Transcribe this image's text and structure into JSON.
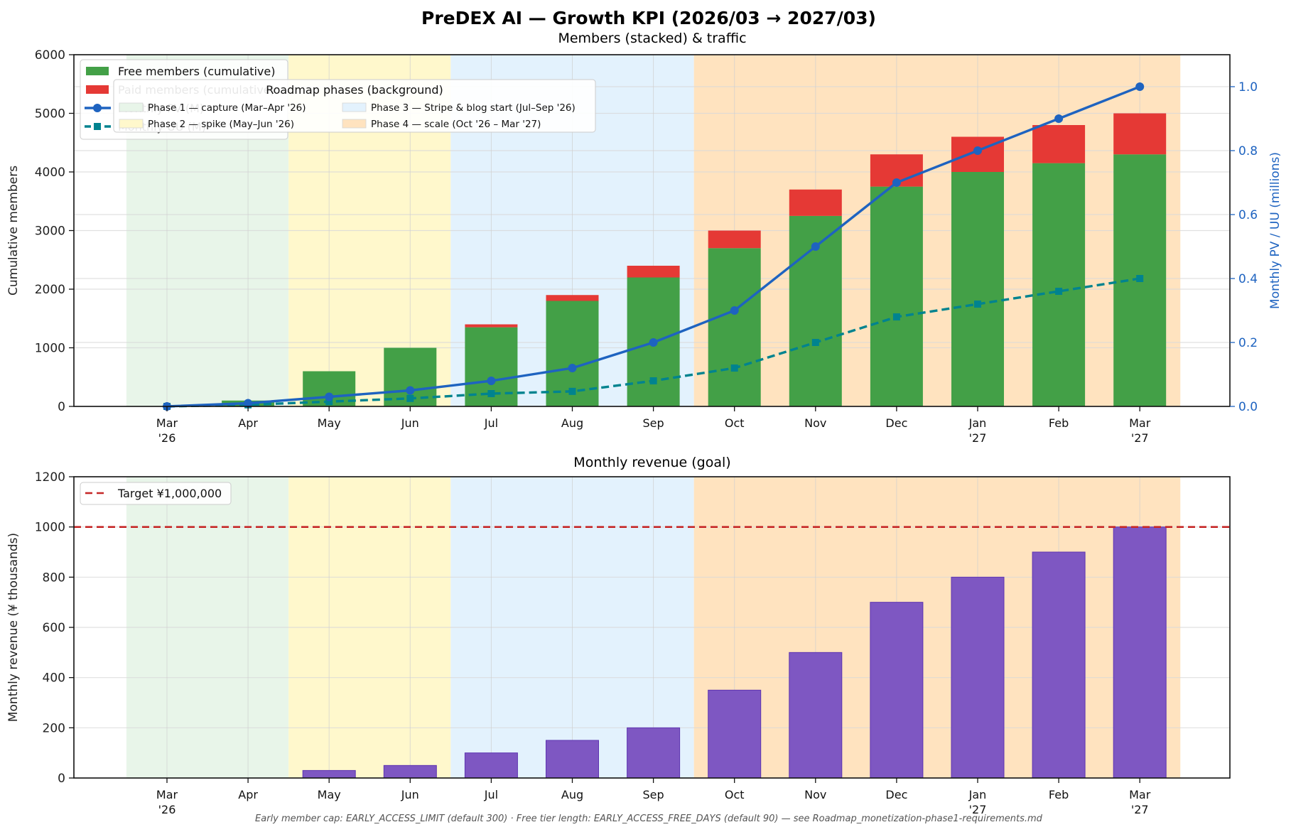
{
  "figure": {
    "title": "PreDEX AI — Growth KPI (2026/03 → 2027/03)",
    "footnote": "Early member cap: EARLY_ACCESS_LIMIT (default 300) · Free tier length: EARLY_ACCESS_FREE_DAYS (default 90) — see Roadmap_monetization-phase1-requirements.md"
  },
  "phases": {
    "title": "Roadmap phases (background)",
    "items": [
      {
        "label": "Phase 1 — capture (Mar–Apr '26)",
        "start_index": 0,
        "end_index": 1,
        "color": "#e8f5e9"
      },
      {
        "label": "Phase 2 — spike (May–Jun '26)",
        "start_index": 2,
        "end_index": 3,
        "color": "#fff8cc"
      },
      {
        "label": "Phase 3 — Stripe & blog start (Jul–Sep '26)",
        "start_index": 4,
        "end_index": 6,
        "color": "#e3f2fd"
      },
      {
        "label": "Phase 4 — scale (Oct '26 – Mar '27)",
        "start_index": 7,
        "end_index": 12,
        "color": "#ffe3bf"
      }
    ]
  },
  "chart_data": [
    {
      "type": "bar",
      "subtype": "stacked-bar-with-lines",
      "title": "Members (stacked) & traffic",
      "xlabel": "",
      "ylabel": "Cumulative members",
      "ylabel_right": "Monthly PV / UU (millions)",
      "categories": [
        [
          "Mar",
          "'26"
        ],
        [
          "Apr",
          ""
        ],
        [
          "May",
          ""
        ],
        [
          "Jun",
          ""
        ],
        [
          "Jul",
          ""
        ],
        [
          "Aug",
          ""
        ],
        [
          "Sep",
          ""
        ],
        [
          "Oct",
          ""
        ],
        [
          "Nov",
          ""
        ],
        [
          "Dec",
          ""
        ],
        [
          "Jan",
          "'27"
        ],
        [
          "Feb",
          ""
        ],
        [
          "Mar",
          "'27"
        ]
      ],
      "ylim": [
        0,
        6000
      ],
      "yticks": [
        0,
        1000,
        2000,
        3000,
        4000,
        5000,
        6000
      ],
      "ylim_right": [
        0,
        1.1
      ],
      "yticks_right": [
        "0.0",
        "0.2",
        "0.4",
        "0.6",
        "0.8",
        "1.0"
      ],
      "grid": true,
      "legend_position": "top-left",
      "series": [
        {
          "name": "Free members (cumulative)",
          "kind": "bar",
          "axis": "left",
          "color": "#43a047",
          "values": [
            0,
            100,
            600,
            1000,
            1350,
            1800,
            2200,
            2700,
            3250,
            3750,
            4000,
            4150,
            4300
          ]
        },
        {
          "name": "Paid members (cumulative)",
          "kind": "bar",
          "axis": "left",
          "color": "#e53935",
          "values": [
            0,
            0,
            0,
            0,
            50,
            100,
            200,
            300,
            450,
            550,
            600,
            650,
            700
          ]
        },
        {
          "name": "Monthly PV (M)",
          "kind": "line",
          "axis": "right",
          "color": "#1e63c0",
          "style": "solid",
          "marker": "circle",
          "values": [
            0.0,
            0.01,
            0.03,
            0.05,
            0.08,
            0.12,
            0.2,
            0.3,
            0.5,
            0.7,
            0.8,
            0.9,
            1.0
          ]
        },
        {
          "name": "Monthly UU (M)",
          "kind": "line",
          "axis": "right",
          "color": "#00838f",
          "style": "dashed",
          "marker": "square",
          "values": [
            0.0,
            0.005,
            0.015,
            0.025,
            0.04,
            0.047,
            0.08,
            0.12,
            0.2,
            0.28,
            0.32,
            0.36,
            0.4
          ]
        }
      ]
    },
    {
      "type": "bar",
      "title": "Monthly revenue (goal)",
      "xlabel": "",
      "ylabel": "Monthly revenue (¥ thousands)",
      "categories": [
        [
          "Mar",
          "'26"
        ],
        [
          "Apr",
          ""
        ],
        [
          "May",
          ""
        ],
        [
          "Jun",
          ""
        ],
        [
          "Jul",
          ""
        ],
        [
          "Aug",
          ""
        ],
        [
          "Sep",
          ""
        ],
        [
          "Oct",
          ""
        ],
        [
          "Nov",
          ""
        ],
        [
          "Dec",
          ""
        ],
        [
          "Jan",
          "'27"
        ],
        [
          "Feb",
          ""
        ],
        [
          "Mar",
          "'27"
        ]
      ],
      "ylim": [
        0,
        1200
      ],
      "yticks": [
        0,
        200,
        400,
        600,
        800,
        1000,
        1200
      ],
      "grid": true,
      "legend_position": "top-left",
      "series": [
        {
          "name": "Monthly revenue",
          "kind": "bar",
          "color": "#7e57c2",
          "values": [
            0,
            0,
            30,
            50,
            100,
            150,
            200,
            350,
            500,
            700,
            800,
            900,
            1000
          ]
        }
      ],
      "target_line": {
        "label": "Target ¥1,000,000",
        "value": 1000,
        "color": "#c62828"
      }
    }
  ]
}
